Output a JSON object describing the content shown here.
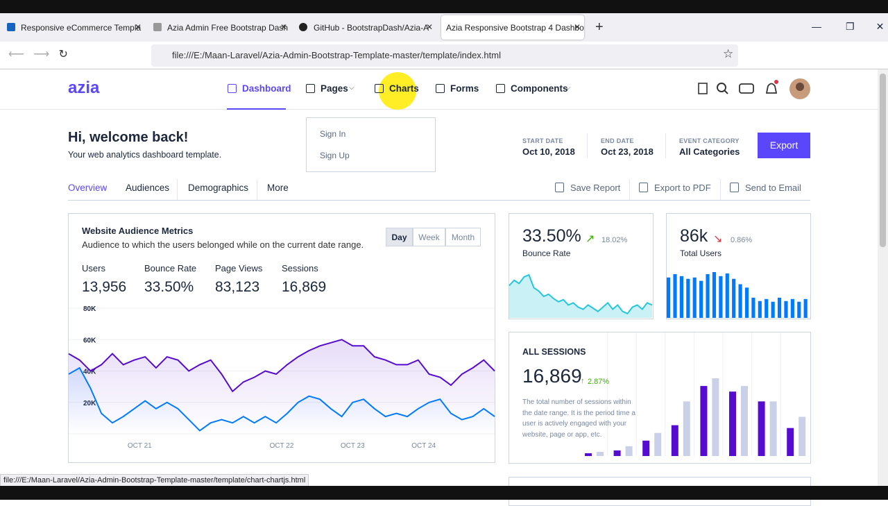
{
  "browser": {
    "tabs": [
      "Responsive eCommerce Templa",
      "Azia Admin Free Bootstrap Dash",
      "GitHub - BootstrapDash/Azia-A",
      "Azia Responsive Bootstrap 4 Dashbo"
    ],
    "url": "file:///E:/Maan-Laravel/Azia-Admin-Bootstrap-Template-master/template/index.html",
    "status": "file:///E:/Maan-Laravel/Azia-Admin-Bootstrap-Template-master/template/chart-chartjs.html"
  },
  "nav": {
    "logo": "azia",
    "items": [
      "Dashboard",
      "Pages",
      "Charts",
      "Forms",
      "Components"
    ],
    "dropdown": [
      "Sign In",
      "Sign Up"
    ]
  },
  "header": {
    "title": "Hi, welcome back!",
    "subtitle": "Your web analytics dashboard template.",
    "filters": [
      {
        "label": "START DATE",
        "value": "Oct 10, 2018"
      },
      {
        "label": "END DATE",
        "value": "Oct 23, 2018"
      },
      {
        "label": "EVENT CATEGORY",
        "value": "All Categories"
      }
    ],
    "button": "Export"
  },
  "tabs": [
    "Overview",
    "Audiences",
    "Demographics",
    "More"
  ],
  "actions": [
    "Save Report",
    "Export to PDF",
    "Send to Email"
  ],
  "audience": {
    "title": "Website Audience Metrics",
    "subtitle": "Audience to which the users belonged while on the current date range.",
    "periods": [
      "Day",
      "Week",
      "Month"
    ],
    "stats": [
      {
        "label": "Users",
        "value": "13,956"
      },
      {
        "label": "Bounce Rate",
        "value": "33.50%"
      },
      {
        "label": "Page Views",
        "value": "83,123"
      },
      {
        "label": "Sessions",
        "value": "16,869"
      }
    ],
    "chart": {
      "type": "line",
      "x": [
        0,
        1,
        2,
        3,
        4,
        5,
        6,
        7,
        8,
        9,
        10,
        11,
        12,
        13,
        14,
        15,
        16,
        17,
        18,
        19,
        20,
        21,
        22,
        23,
        24,
        25,
        26,
        27,
        28,
        29,
        30,
        31,
        32,
        33,
        34,
        35,
        36,
        37,
        38,
        39
      ],
      "xlim": [
        0,
        39
      ],
      "xticks": [
        {
          "value": 6.5,
          "label": "OCT 21"
        },
        {
          "value": 19.5,
          "label": "OCT 22"
        },
        {
          "value": 26,
          "label": "OCT 23"
        },
        {
          "value": 32.5,
          "label": "OCT 24"
        }
      ],
      "ylim": [
        0,
        80000
      ],
      "yticks": [
        {
          "value": 20000,
          "label": "20K"
        },
        {
          "value": 40000,
          "label": "40K"
        },
        {
          "value": 60000,
          "label": "60K"
        },
        {
          "value": 80000,
          "label": "80K"
        }
      ],
      "series": [
        {
          "color": "#560bd0",
          "values": [
            51000,
            47000,
            40000,
            44000,
            51000,
            44000,
            47000,
            49000,
            42000,
            49000,
            47000,
            40000,
            44000,
            47000,
            38000,
            27000,
            33000,
            36000,
            40000,
            38000,
            44000,
            49000,
            53000,
            56000,
            58000,
            60000,
            56000,
            56000,
            49000,
            47000,
            44000,
            44000,
            47000,
            38000,
            36000,
            31000,
            38000,
            42000,
            47000,
            40000
          ]
        },
        {
          "color": "#007bff",
          "values": [
            38000,
            42000,
            29000,
            13000,
            7000,
            11000,
            16000,
            21000,
            16000,
            20000,
            16000,
            9000,
            2000,
            7000,
            9000,
            7000,
            11000,
            7000,
            11000,
            7000,
            13000,
            20000,
            24000,
            22000,
            16000,
            11000,
            20000,
            22000,
            16000,
            11000,
            13000,
            11000,
            16000,
            20000,
            22000,
            13000,
            9000,
            11000,
            16000,
            11000
          ]
        }
      ]
    }
  },
  "bounce": {
    "value": "33.50%",
    "change": "18.02%",
    "label": "Bounce Rate",
    "spark": {
      "type": "area",
      "color": "#26c6da",
      "values": [
        30,
        35,
        32,
        38,
        40,
        28,
        25,
        20,
        22,
        18,
        15,
        17,
        12,
        14,
        10,
        8,
        12,
        9,
        6,
        10,
        14,
        8,
        12,
        6,
        4,
        10,
        12,
        8,
        14,
        12
      ]
    }
  },
  "users": {
    "value": "86k",
    "change": "0.86%",
    "label": "Total Users",
    "spark": {
      "type": "bar",
      "color": "#007bff",
      "values": [
        60,
        65,
        62,
        58,
        60,
        55,
        65,
        68,
        62,
        66,
        58,
        50,
        45,
        30,
        25,
        28,
        24,
        30,
        25,
        28,
        24,
        28
      ]
    }
  },
  "sessions": {
    "title": "ALL SESSIONS",
    "value": "16,869",
    "change": "2.87%",
    "text": "The total number of sessions within the date range. It is the period time a user is actively engaged with your website, page or app, etc.",
    "chart": {
      "type": "bar",
      "series": [
        {
          "color": "#560bd0",
          "values": [
            4,
            8,
            22,
            44,
            100,
            92,
            78,
            40
          ]
        },
        {
          "color": "#cad0e8",
          "values": [
            6,
            14,
            33,
            78,
            111,
            100,
            78,
            56
          ]
        }
      ]
    }
  }
}
